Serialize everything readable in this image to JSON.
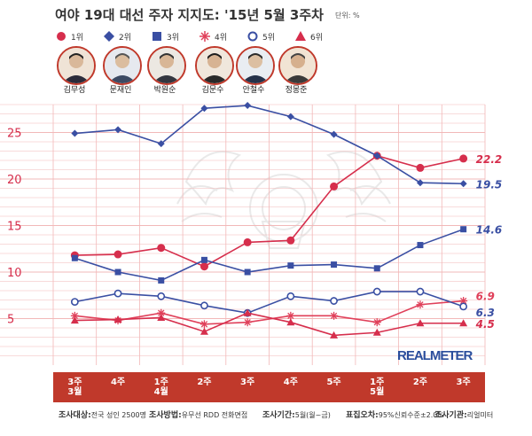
{
  "header": {
    "title": "여야 19대 대선 주자 지지도: '15년 5월 3주차",
    "unit": "단위: %"
  },
  "legend": [
    {
      "label": "1위",
      "color": "#d62e4c",
      "marker": "filled-circle"
    },
    {
      "label": "2위",
      "color": "#3a4fa3",
      "marker": "filled-diamond"
    },
    {
      "label": "3위",
      "color": "#3a4fa3",
      "marker": "filled-square"
    },
    {
      "label": "4위",
      "color": "#e0405a",
      "marker": "asterisk"
    },
    {
      "label": "5위",
      "color": "#3a4fa3",
      "marker": "hollow-circle"
    },
    {
      "label": "6위",
      "color": "#d62e4c",
      "marker": "filled-triangle"
    }
  ],
  "candidates": [
    {
      "name": "김무성"
    },
    {
      "name": "문재인"
    },
    {
      "name": "박원순"
    },
    {
      "name": "김문수"
    },
    {
      "name": "안철수"
    },
    {
      "name": "정몽준"
    }
  ],
  "chart_data": {
    "type": "line",
    "categories": [
      "3주\n3월",
      "4주",
      "1주\n4월",
      "2주",
      "3주",
      "4주",
      "5주",
      "1주\n5월",
      "2주",
      "3주"
    ],
    "ylim": [
      0,
      28
    ],
    "yticks": [
      5,
      10,
      15,
      20,
      25
    ],
    "grid": true,
    "series": [
      {
        "name": "1위",
        "candidate": "김무성",
        "color": "#d62e4c",
        "marker": "circle",
        "values": [
          11.8,
          11.9,
          12.6,
          10.6,
          13.2,
          13.4,
          19.2,
          22.5,
          21.2,
          22.2
        ],
        "end_label": "22.2"
      },
      {
        "name": "2위",
        "candidate": "문재인",
        "color": "#3a4fa3",
        "marker": "diamond",
        "values": [
          24.9,
          25.3,
          23.8,
          27.6,
          27.9,
          26.7,
          24.8,
          22.5,
          19.6,
          19.5
        ],
        "end_label": "19.5"
      },
      {
        "name": "3위",
        "candidate": "박원순",
        "color": "#3a4fa3",
        "marker": "square",
        "values": [
          11.5,
          10.0,
          9.1,
          11.3,
          10.0,
          10.7,
          10.8,
          10.4,
          12.9,
          14.6
        ],
        "end_label": "14.6"
      },
      {
        "name": "4위",
        "candidate": "김문수",
        "color": "#e0405a",
        "marker": "asterisk",
        "values": [
          5.3,
          4.8,
          5.6,
          4.4,
          4.6,
          5.3,
          5.3,
          4.6,
          6.5,
          6.9
        ],
        "end_label": "6.9"
      },
      {
        "name": "5위",
        "candidate": "안철수",
        "color": "#3a4fa3",
        "marker": "hollow-circle",
        "values": [
          6.8,
          7.7,
          7.4,
          6.4,
          5.6,
          7.4,
          6.9,
          7.9,
          7.9,
          6.3
        ],
        "end_label": "6.3"
      },
      {
        "name": "6위",
        "candidate": "정몽준",
        "color": "#d62e4c",
        "marker": "triangle",
        "values": [
          4.8,
          4.9,
          5.1,
          3.6,
          5.6,
          4.6,
          3.2,
          3.5,
          4.5,
          4.5
        ],
        "end_label": "4.5"
      }
    ]
  },
  "brand": "REALMETER",
  "footer": [
    {
      "key": "조사대상:",
      "value": "전국 성인 2500명"
    },
    {
      "key": "조사방법:",
      "value": "유무선 RDD 전화면접"
    },
    {
      "key": "조사기간:",
      "value": "5월(월~금)"
    },
    {
      "key": "표집오차:",
      "value": "95%신뢰수준±2.0%"
    },
    {
      "key": "조사기관:",
      "value": "리얼미터"
    }
  ]
}
